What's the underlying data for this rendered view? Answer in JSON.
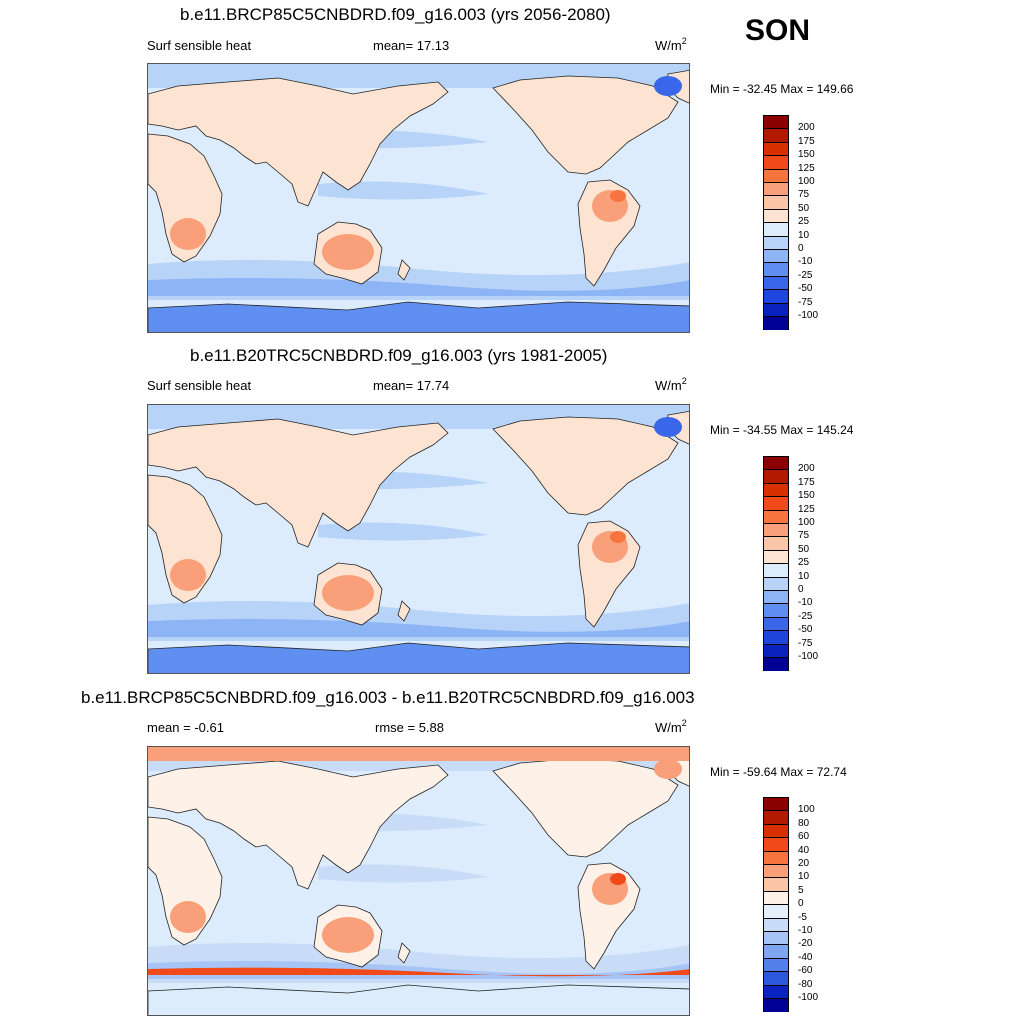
{
  "season": "SON",
  "panels": [
    {
      "title": "b.e11.BRCP85C5CNBDRD.f09_g16.003 (yrs 2056-2080)",
      "variable": "Surf sensible heat",
      "stat1": "mean=  17.13",
      "stat2": "",
      "units_base": "W/m",
      "units_exp": "2",
      "minmax": "Min = -32.45 Max = 149.66"
    },
    {
      "title": "b.e11.B20TRC5CNBDRD.f09_g16.003 (yrs 1981-2005)",
      "variable": "Surf sensible heat",
      "stat1": "mean=  17.74",
      "stat2": "",
      "units_base": "W/m",
      "units_exp": "2",
      "minmax": "Min = -34.55 Max = 145.24"
    },
    {
      "title": "b.e11.BRCP85C5CNBDRD.f09_g16.003 - b.e11.B20TRC5CNBDRD.f09_g16.003",
      "variable": "",
      "stat1": "mean =  -0.61",
      "stat2": "rmse =   5.88",
      "units_base": "W/m",
      "units_exp": "2",
      "minmax": "Min = -59.64 Max =  72.74"
    }
  ],
  "colorbars": [
    {
      "labels": [
        "200",
        "175",
        "150",
        "125",
        "100",
        "75",
        "50",
        "25",
        "10",
        "0",
        "-10",
        "-25",
        "-50",
        "-75",
        "-100"
      ],
      "colors": [
        "#8b0000",
        "#b21a00",
        "#d93000",
        "#f04a1a",
        "#f7743f",
        "#f9a07a",
        "#fbc6a8",
        "#fde4d2",
        "#dcecfc",
        "#b7d3f8",
        "#8db4f5",
        "#5f8ff0",
        "#3a66ea",
        "#1e46de",
        "#0a22c0",
        "#000096"
      ]
    },
    {
      "labels": [
        "200",
        "175",
        "150",
        "125",
        "100",
        "75",
        "50",
        "25",
        "10",
        "0",
        "-10",
        "-25",
        "-50",
        "-75",
        "-100"
      ],
      "colors": [
        "#8b0000",
        "#b21a00",
        "#d93000",
        "#f04a1a",
        "#f7743f",
        "#f9a07a",
        "#fbc6a8",
        "#fde4d2",
        "#dcecfc",
        "#b7d3f8",
        "#8db4f5",
        "#5f8ff0",
        "#3a66ea",
        "#1e46de",
        "#0a22c0",
        "#000096"
      ]
    },
    {
      "labels": [
        "100",
        "80",
        "60",
        "40",
        "20",
        "10",
        "5",
        "0",
        "-5",
        "-10",
        "-20",
        "-40",
        "-60",
        "-80",
        "-100"
      ],
      "colors": [
        "#8b0000",
        "#b21a00",
        "#d93000",
        "#f04a1a",
        "#f7743f",
        "#f9a07a",
        "#fbc6a8",
        "#fdf1e8",
        "#e6f0fc",
        "#c8dcf8",
        "#a6c4f5",
        "#7fa4f0",
        "#5380ea",
        "#2c58de",
        "#0a22c0",
        "#000096"
      ]
    }
  ],
  "map_palettes": [
    {
      "ocean": "#dcecfc",
      "band": "#b7d3f8",
      "band2": "#8db4f5",
      "land": "#fde4d2",
      "land2": "#fbc6a8",
      "land3": "#f9a07a",
      "hot": "#f7743f",
      "ice": "#5f8ff0",
      "icedark": "#3a66ea"
    },
    {
      "ocean": "#dcecfc",
      "band": "#b7d3f8",
      "band2": "#8db4f5",
      "land": "#fde4d2",
      "land2": "#fbc6a8",
      "land3": "#f9a07a",
      "hot": "#f7743f",
      "ice": "#5f8ff0",
      "icedark": "#3a66ea"
    },
    {
      "ocean": "#dcecfc",
      "band": "#c8dcf8",
      "band2": "#a6c4f5",
      "land": "#fdf1e8",
      "land2": "#fbc6a8",
      "land3": "#f9a07a",
      "hot": "#f04a1a",
      "ice": "#7fa4f0",
      "icedark": "#f9a07a"
    }
  ]
}
